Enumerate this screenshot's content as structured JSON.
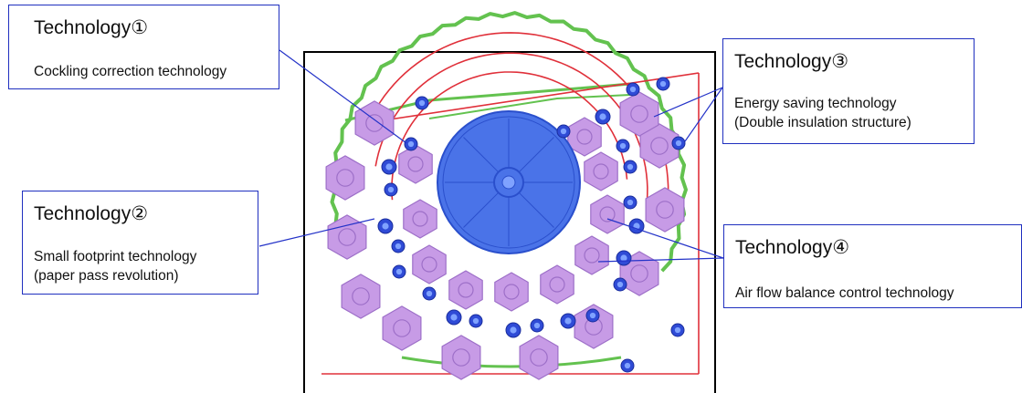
{
  "callouts": [
    {
      "title": "Technology①",
      "lines": [
        "Cockling correction technology"
      ]
    },
    {
      "title": "Technology②",
      "lines": [
        "Small footprint technology",
        "(paper pass revolution)"
      ]
    },
    {
      "title": "Technology③",
      "lines": [
        "Energy saving technology",
        "(Double insulation structure)"
      ]
    },
    {
      "title": "Technology④",
      "lines": [
        "Air flow balance control technology"
      ]
    }
  ],
  "colors": {
    "frame": "#000000",
    "paper_path": "#e0303a",
    "drum_fill": "#4a73e8",
    "drum_stroke": "#2a4fcc",
    "roller_fill": "#2f4bd6",
    "roller_core": "#7fa2ff",
    "heater_fill": "#c79be6",
    "heater_stroke": "#9d6fc8",
    "insulation": "#63c24f",
    "leader": "#2433c8",
    "box_border": "#1f2fbf"
  }
}
